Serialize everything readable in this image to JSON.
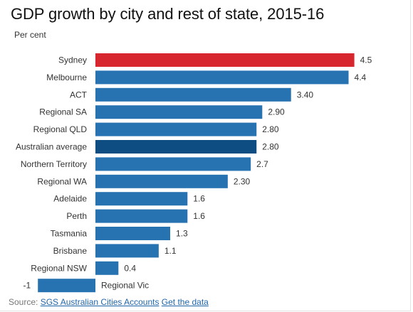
{
  "chart_data": {
    "type": "bar",
    "orientation": "horizontal",
    "title": "GDP growth by city and rest of state, 2015-16",
    "subtitle": "Per cent",
    "categories": [
      "Sydney",
      "Melbourne",
      "ACT",
      "Regional SA",
      "Regional QLD",
      "Australian average",
      "Northern Territory",
      "Regional WA",
      "Adelaide",
      "Perth",
      "Tasmania",
      "Brisbane",
      "Regional NSW",
      "Regional Vic"
    ],
    "values": [
      4.5,
      4.4,
      3.4,
      2.9,
      2.8,
      2.8,
      2.7,
      2.3,
      1.6,
      1.6,
      1.3,
      1.1,
      0.4,
      -1
    ],
    "value_labels": [
      "4.5",
      "4.4",
      "3.40",
      "2.90",
      "2.80",
      "2.80",
      "2.7",
      "2.30",
      "1.6",
      "1.6",
      "1.3",
      "1.1",
      "0.4",
      "-1"
    ],
    "bar_colors": [
      "#d7262d",
      "#2773b2",
      "#2773b2",
      "#2773b2",
      "#2773b2",
      "#0e4d82",
      "#2773b2",
      "#2773b2",
      "#2773b2",
      "#2773b2",
      "#2773b2",
      "#2773b2",
      "#2773b2",
      "#2773b2"
    ],
    "highlight_color": "#d7262d",
    "average_color": "#0e4d82",
    "default_color": "#2773b2",
    "xlim": [
      -1,
      4.5
    ],
    "grid": false,
    "legend": "none"
  },
  "source": {
    "prefix": "Source:",
    "link_text": "SGS Australian Cities Accounts",
    "data_link": "Get the data"
  }
}
